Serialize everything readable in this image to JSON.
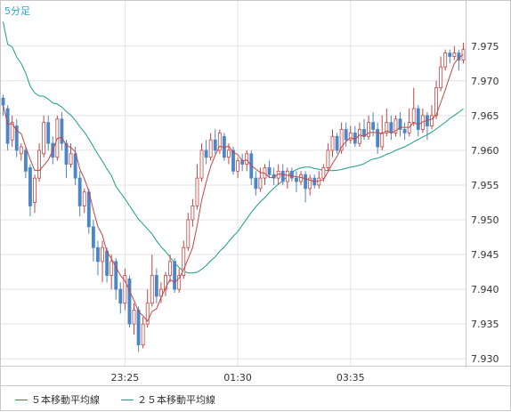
{
  "chart_data": {
    "type": "candlestick",
    "timeframe_label": "5分足",
    "x_ticks": [
      "23:25",
      "01:30",
      "03:35"
    ],
    "y_ticks": [
      "7.975",
      "7.970",
      "7.965",
      "7.960",
      "7.955",
      "7.950",
      "7.945",
      "7.940",
      "7.935",
      "7.930"
    ],
    "ylim": [
      7.929,
      7.9815
    ],
    "grid": true,
    "legend": [
      {
        "name": "５本移動平均線",
        "color": "#c44444"
      },
      {
        "name": "２５本移動平均線",
        "color": "#1a9e8a"
      }
    ],
    "up_color": "#ffffff",
    "down_color": "#4a86c8",
    "candles": [
      [
        7.9675,
        7.9665,
        7.968,
        7.965
      ],
      [
        7.966,
        7.961,
        7.9665,
        7.96
      ],
      [
        7.9615,
        7.964,
        7.965,
        7.9605
      ],
      [
        7.9635,
        7.96,
        7.9645,
        7.959
      ],
      [
        7.9595,
        7.9605,
        7.961,
        7.9585
      ],
      [
        7.96,
        7.957,
        7.9605,
        7.956
      ],
      [
        7.9575,
        7.952,
        7.958,
        7.9505
      ],
      [
        7.9525,
        7.956,
        7.9565,
        7.951
      ],
      [
        7.956,
        7.96,
        7.961,
        7.9555
      ],
      [
        7.9595,
        7.964,
        7.965,
        7.959
      ],
      [
        7.964,
        7.961,
        7.965,
        7.96
      ],
      [
        7.961,
        7.959,
        7.962,
        7.958
      ],
      [
        7.959,
        7.9645,
        7.965,
        7.9585
      ],
      [
        7.9645,
        7.961,
        7.9655,
        7.96
      ],
      [
        7.961,
        7.958,
        7.9615,
        7.956
      ],
      [
        7.958,
        7.9595,
        7.961,
        7.9575
      ],
      [
        7.9595,
        7.956,
        7.9605,
        7.955
      ],
      [
        7.956,
        7.952,
        7.957,
        7.9505
      ],
      [
        7.952,
        7.954,
        7.9545,
        7.951
      ],
      [
        7.954,
        7.949,
        7.9545,
        7.948
      ],
      [
        7.949,
        7.946,
        7.95,
        7.944
      ],
      [
        7.946,
        7.944,
        7.947,
        7.942
      ],
      [
        7.944,
        7.946,
        7.947,
        7.941
      ],
      [
        7.9455,
        7.942,
        7.946,
        7.941
      ],
      [
        7.942,
        7.944,
        7.945,
        7.94
      ],
      [
        7.944,
        7.94,
        7.9445,
        7.9385
      ],
      [
        7.94,
        7.938,
        7.941,
        7.9365
      ],
      [
        7.938,
        7.942,
        7.943,
        7.937
      ],
      [
        7.9415,
        7.935,
        7.942,
        7.9345
      ],
      [
        7.935,
        7.937,
        7.938,
        7.9335
      ],
      [
        7.937,
        7.932,
        7.9375,
        7.931
      ],
      [
        7.932,
        7.935,
        7.936,
        7.9315
      ],
      [
        7.935,
        7.938,
        7.94,
        7.9345
      ],
      [
        7.938,
        7.942,
        7.945,
        7.9375
      ],
      [
        7.942,
        7.939,
        7.943,
        7.938
      ],
      [
        7.939,
        7.94,
        7.941,
        7.938
      ],
      [
        7.94,
        7.942,
        7.9425,
        7.939
      ],
      [
        7.942,
        7.944,
        7.945,
        7.941
      ],
      [
        7.944,
        7.94,
        7.9445,
        7.9395
      ],
      [
        7.94,
        7.942,
        7.943,
        7.9395
      ],
      [
        7.942,
        7.946,
        7.947,
        7.9415
      ],
      [
        7.946,
        7.95,
        7.951,
        7.9455
      ],
      [
        7.95,
        7.952,
        7.953,
        7.949
      ],
      [
        7.952,
        7.956,
        7.958,
        7.9515
      ],
      [
        7.956,
        7.96,
        7.961,
        7.9555
      ],
      [
        7.96,
        7.959,
        7.9615,
        7.958
      ],
      [
        7.959,
        7.9615,
        7.9625,
        7.9585
      ],
      [
        7.9615,
        7.96,
        7.963,
        7.9595
      ],
      [
        7.96,
        7.9625,
        7.963,
        7.9595
      ],
      [
        7.962,
        7.959,
        7.9625,
        7.9585
      ],
      [
        7.959,
        7.96,
        7.961,
        7.958
      ],
      [
        7.96,
        7.957,
        7.9605,
        7.9565
      ],
      [
        7.957,
        7.9585,
        7.959,
        7.956
      ],
      [
        7.9585,
        7.958,
        7.9595,
        7.957
      ],
      [
        7.958,
        7.9595,
        7.96,
        7.957
      ],
      [
        7.9595,
        7.956,
        7.96,
        7.955
      ],
      [
        7.956,
        7.9545,
        7.957,
        7.9535
      ],
      [
        7.9545,
        7.956,
        7.9575,
        7.954
      ],
      [
        7.956,
        7.9575,
        7.958,
        7.955
      ],
      [
        7.9575,
        7.9565,
        7.9585,
        7.956
      ],
      [
        7.9565,
        7.956,
        7.9575,
        7.955
      ],
      [
        7.956,
        7.957,
        7.958,
        7.955
      ],
      [
        7.957,
        7.9555,
        7.958,
        7.955
      ],
      [
        7.9555,
        7.957,
        7.9575,
        7.9545
      ],
      [
        7.957,
        7.956,
        7.9575,
        7.9555
      ],
      [
        7.956,
        7.9555,
        7.957,
        7.954
      ],
      [
        7.9555,
        7.9565,
        7.957,
        7.955
      ],
      [
        7.9565,
        7.9545,
        7.957,
        7.9525
      ],
      [
        7.9545,
        7.956,
        7.9565,
        7.9535
      ],
      [
        7.956,
        7.955,
        7.9565,
        7.9545
      ],
      [
        7.955,
        7.956,
        7.957,
        7.9545
      ],
      [
        7.956,
        7.9575,
        7.958,
        7.9555
      ],
      [
        7.9575,
        7.96,
        7.961,
        7.957
      ],
      [
        7.96,
        7.962,
        7.963,
        7.959
      ],
      [
        7.962,
        7.96,
        7.9625,
        7.9595
      ],
      [
        7.96,
        7.963,
        7.964,
        7.9595
      ],
      [
        7.963,
        7.9615,
        7.964,
        7.9605
      ],
      [
        7.9615,
        7.9625,
        7.9635,
        7.961
      ],
      [
        7.9625,
        7.961,
        7.9635,
        7.9605
      ],
      [
        7.961,
        7.963,
        7.964,
        7.9605
      ],
      [
        7.963,
        7.962,
        7.9645,
        7.9615
      ],
      [
        7.962,
        7.964,
        7.965,
        7.9615
      ],
      [
        7.964,
        7.963,
        7.9655,
        7.962
      ],
      [
        7.963,
        7.9605,
        7.964,
        7.9595
      ],
      [
        7.9605,
        7.9625,
        7.965,
        7.96
      ],
      [
        7.9625,
        7.964,
        7.966,
        7.962
      ],
      [
        7.964,
        7.9625,
        7.965,
        7.9615
      ],
      [
        7.9625,
        7.9645,
        7.965,
        7.962
      ],
      [
        7.9645,
        7.963,
        7.9655,
        7.962
      ],
      [
        7.963,
        7.9625,
        7.964,
        7.9615
      ],
      [
        7.9625,
        7.964,
        7.966,
        7.962
      ],
      [
        7.964,
        7.966,
        7.969,
        7.9635
      ],
      [
        7.966,
        7.963,
        7.9665,
        7.962
      ],
      [
        7.963,
        7.965,
        7.966,
        7.9625
      ],
      [
        7.965,
        7.9635,
        7.9655,
        7.9615
      ],
      [
        7.9635,
        7.965,
        7.9665,
        7.963
      ],
      [
        7.965,
        7.969,
        7.97,
        7.9645
      ],
      [
        7.969,
        7.972,
        7.9735,
        7.9685
      ],
      [
        7.972,
        7.974,
        7.9745,
        7.9715
      ],
      [
        7.974,
        7.9735,
        7.9745,
        7.9725
      ],
      [
        7.9735,
        7.974,
        7.975,
        7.973
      ],
      [
        7.974,
        7.973,
        7.9745,
        7.9715
      ],
      [
        7.973,
        7.9745,
        7.9755,
        7.9725
      ]
    ]
  }
}
